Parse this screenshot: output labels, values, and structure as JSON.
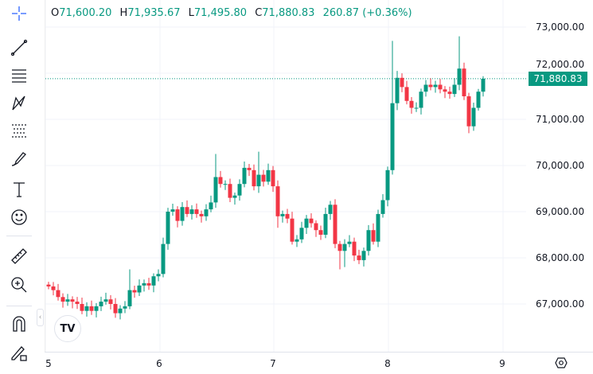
{
  "legend": {
    "o_key": "O",
    "o": "71,600.20",
    "h_key": "H",
    "h": "71,935.67",
    "l_key": "L",
    "l": "71,495.80",
    "c_key": "C",
    "c": "71,880.83",
    "change": "260.87 (+0.36%)"
  },
  "last_price": "71,880.83",
  "colors": {
    "up": "#089981",
    "down": "#f23645",
    "accent": "#2962ff"
  },
  "price_axis": [
    "73,000.00",
    "72,000.00",
    "71,000.00",
    "70,000.00",
    "69,000.00",
    "68,000.00",
    "67,000.00"
  ],
  "time_axis": [
    "5",
    "6",
    "7",
    "8",
    "9"
  ],
  "logo": "TV",
  "toolbar": [
    "crosshair-icon",
    "trend-line-icon",
    "horizontal-lines-icon",
    "pattern-icon",
    "fib-icon",
    "brush-icon",
    "text-icon",
    "emoji-icon",
    "ruler-icon",
    "zoom-in-icon",
    "magnet-icon",
    "lock-draw-icon"
  ],
  "chart_data": {
    "type": "candlestick",
    "ylim": [
      66500,
      73200
    ],
    "yticks": [
      67000,
      68000,
      69000,
      70000,
      71000,
      72000,
      73000
    ],
    "x_ticks": [
      "5",
      "6",
      "7",
      "8",
      "9"
    ],
    "last": 71880.83,
    "closes": [
      67380,
      67300,
      67150,
      67050,
      67100,
      67050,
      67000,
      66850,
      66950,
      66850,
      66950,
      67050,
      67100,
      67000,
      66800,
      66900,
      66950,
      67300,
      67250,
      67400,
      67450,
      67400,
      67600,
      67650,
      68300,
      69000,
      69050,
      68800,
      69100,
      68950,
      69050,
      68950,
      68900,
      69050,
      69200,
      69750,
      69600,
      69600,
      69300,
      69350,
      69600,
      69950,
      69900,
      69550,
      69800,
      69650,
      69900,
      69550,
      68900,
      68950,
      68850,
      68350,
      68400,
      68650,
      68850,
      68750,
      68600,
      68500,
      68950,
      69150,
      68300,
      68150,
      68300,
      68350,
      68050,
      67950,
      68150,
      68600,
      68350,
      68950,
      69250,
      69900,
      71350,
      71900,
      71700,
      71400,
      71250,
      71250,
      71600,
      71750,
      71700,
      71750,
      71650,
      71600,
      71550,
      71750,
      72100,
      71500,
      70850,
      71250,
      71600,
      71880.83
    ],
    "first_open": 67420,
    "wick_highs": {
      "17": 67750,
      "35": 70250,
      "44": 70300,
      "72": 72700,
      "73": 72050,
      "86": 72800,
      "91": 71935.67
    },
    "wick_lows": {
      "14": 66700,
      "48": 68650,
      "61": 67750,
      "62": 67800,
      "88": 70700,
      "91": 71495.8
    }
  }
}
